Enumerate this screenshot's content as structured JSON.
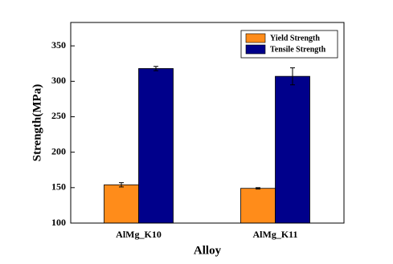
{
  "chart_data": {
    "type": "bar",
    "x_label": "Alloy",
    "y_label": "Strength(MPa)",
    "categories": [
      "AlMg_K10",
      "AlMg_K11"
    ],
    "series": [
      {
        "name": "Yield Strength",
        "color": "#ff8c1a",
        "values": [
          154,
          149
        ],
        "errors": [
          3,
          1
        ]
      },
      {
        "name": "Tensile Strength",
        "color": "#00008b",
        "values": [
          318,
          307
        ],
        "errors": [
          3,
          12
        ]
      }
    ],
    "ylim": [
      100,
      383
    ],
    "yticks": [
      100,
      150,
      200,
      250,
      300,
      350
    ],
    "legend": "upper right"
  }
}
